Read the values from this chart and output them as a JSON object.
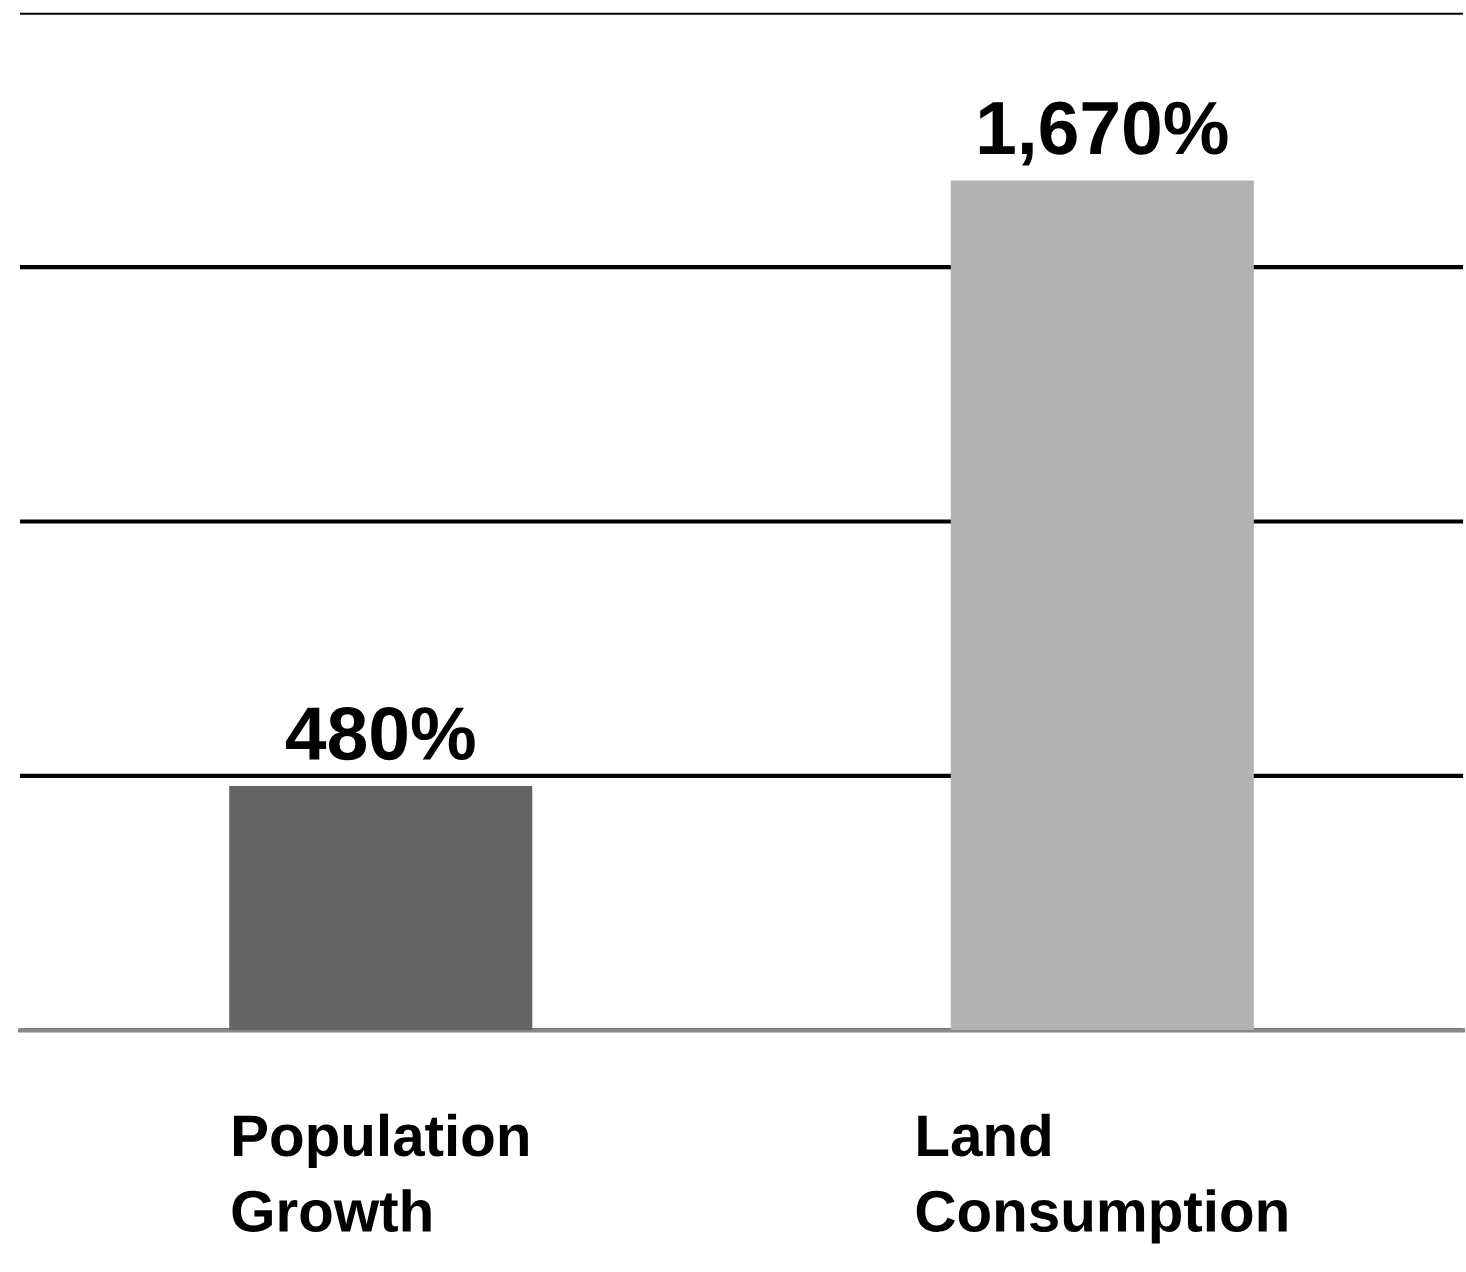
{
  "chart_data": {
    "type": "bar",
    "categories": [
      "Population\nGrowth",
      "Land\nConsumption"
    ],
    "values": [
      480,
      1670
    ],
    "colors": [
      "#646464",
      "#b2b2b2"
    ],
    "value_labels": [
      "480%",
      "1,670%"
    ],
    "ylim": [
      0,
      2000
    ],
    "yticks": [
      {
        "value": 0,
        "label": null
      },
      {
        "value": 500,
        "label": null
      },
      {
        "value": 1000,
        "label": null
      },
      {
        "value": 1500,
        "label": null
      },
      {
        "value": 2000,
        "label": null
      }
    ],
    "grid": "y",
    "tick_labels": "x",
    "legend": false
  }
}
